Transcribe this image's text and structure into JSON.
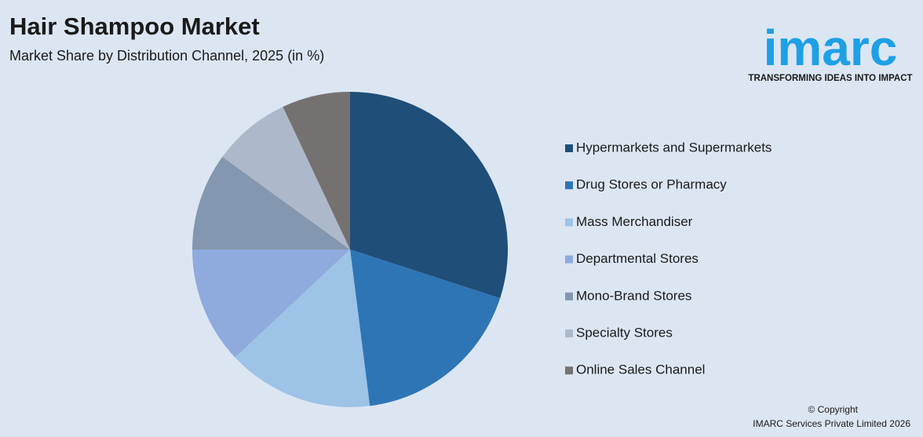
{
  "chart_data": {
    "type": "pie",
    "title": "Hair Shampoo Market",
    "subtitle": "Market Share by Distribution Channel, 2025 (in %)",
    "categories": [
      "Hypermarkets and Supermarkets",
      "Drug Stores or Pharmacy",
      "Mass Merchandiser",
      "Departmental Stores",
      "Mono-Brand Stores",
      "Specialty Stores",
      "Online Sales Channel"
    ],
    "values": [
      30,
      18,
      15,
      12,
      10,
      8,
      7
    ],
    "colors": [
      "#1f4e79",
      "#2e75b6",
      "#9dc3e6",
      "#8faadc",
      "#8497b0",
      "#adb9ca",
      "#767171"
    ],
    "legend": "right"
  },
  "logo": {
    "name": "imarc",
    "tagline": "TRANSFORMING IDEAS INTO IMPACT"
  },
  "footer": {
    "copyright": "© Copyright",
    "company": "IMARC Services Private Limited 2026"
  }
}
